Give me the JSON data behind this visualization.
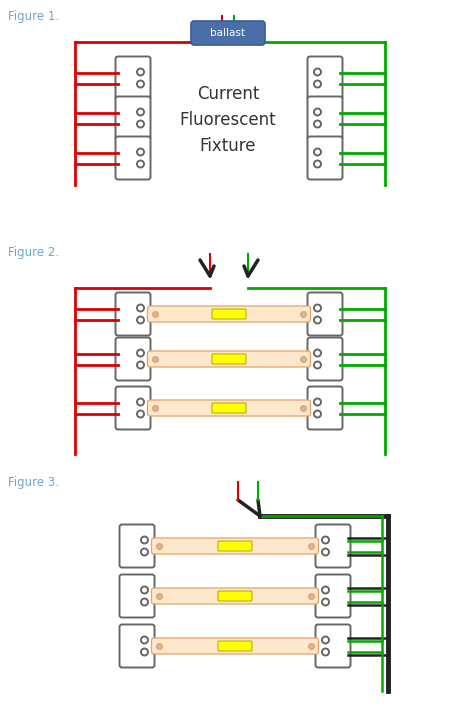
{
  "fig1_label": "Figure 1.",
  "fig2_label": "Figure 2.",
  "fig3_label": "Figure 3.",
  "fig1_center_text": "Current\nFluorescent\nFixture",
  "ballast_label": "ballast",
  "bg_color": "#ffffff",
  "red": "#dd0000",
  "green": "#00aa00",
  "black": "#222222",
  "gray": "#666666",
  "dark_gray": "#333333",
  "orange_fill": "#fde8cc",
  "orange_line": "#e8a06a",
  "yellow": "#ffff00",
  "label_color": "#6fa8c8",
  "ballast_fill": "#4a6fa8",
  "ballast_edge": "#3a5a98"
}
